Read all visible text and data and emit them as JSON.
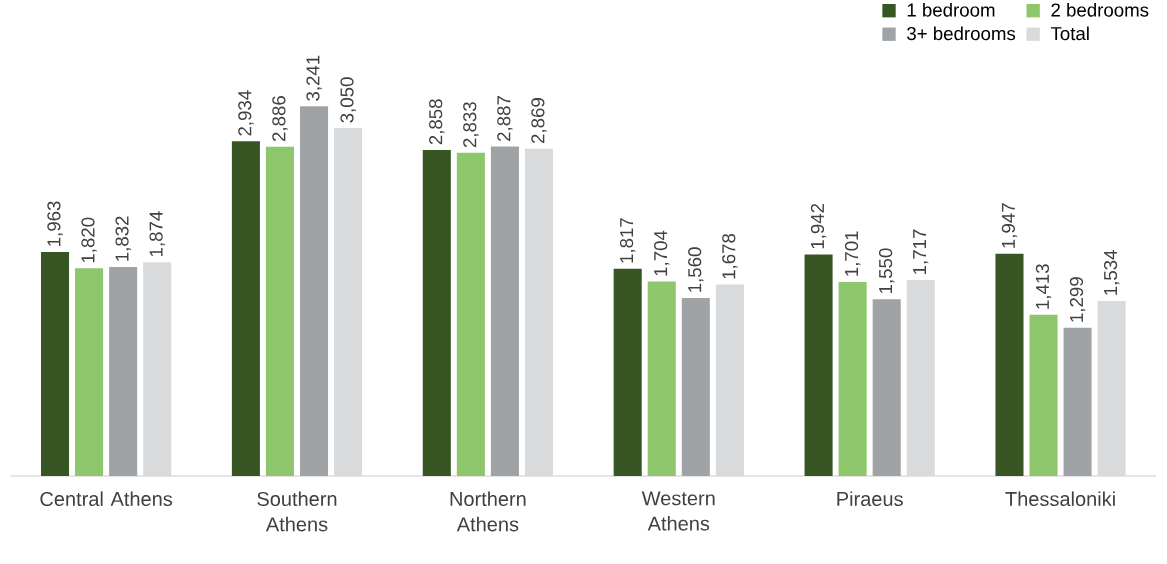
{
  "chart_data": {
    "type": "bar",
    "categories": [
      "Central Athens",
      "Southern Athens",
      "Northern Athens",
      "Western Athens",
      "Piraeus",
      "Thessaloniki"
    ],
    "series": [
      {
        "name": "1 bedroom",
        "color": "#375623",
        "values": [
          1963,
          2934,
          2858,
          1817,
          1942,
          1947
        ],
        "value_labels": [
          "1,963",
          "2,934",
          "2,858",
          "1,817",
          "1,942",
          "1,947"
        ]
      },
      {
        "name": "2 bedrooms",
        "color": "#8dc66b",
        "values": [
          1820,
          2886,
          2833,
          1704,
          1701,
          1413
        ],
        "value_labels": [
          "1,820",
          "2,886",
          "2,833",
          "1,704",
          "1,701",
          "1,413"
        ]
      },
      {
        "name": "3+ bedrooms",
        "color": "#a0a3a6",
        "values": [
          1832,
          3241,
          2887,
          1560,
          1550,
          1299
        ],
        "value_labels": [
          "1,832",
          "3,241",
          "2,887",
          "1,560",
          "1,550",
          "1,299"
        ]
      },
      {
        "name": "Total",
        "color": "#d9dadc",
        "values": [
          1874,
          3050,
          2869,
          1678,
          1717,
          1534
        ],
        "value_labels": [
          "1,874",
          "3,050",
          "2,869",
          "1,678",
          "1,717",
          "1,534"
        ]
      }
    ],
    "legend": "top right"
  }
}
